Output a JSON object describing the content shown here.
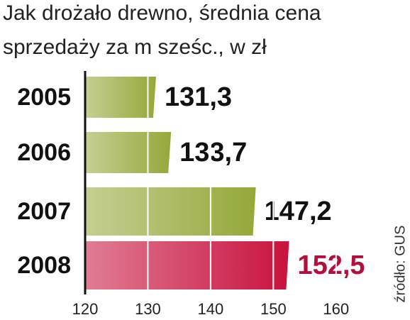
{
  "chart_data": {
    "type": "bar",
    "orientation": "horizontal",
    "title": [
      "Jak drożało drewno, średnia cena",
      "sprzedaży za m sześc., w zł"
    ],
    "source": "źródło: GUS",
    "categories": [
      "2005",
      "2006",
      "2007",
      "2008"
    ],
    "values": [
      131.3,
      133.7,
      147.2,
      152.5
    ],
    "value_labels": [
      "131,3",
      "133,7",
      "147,2",
      "152,5"
    ],
    "colors": [
      "#95a83a",
      "#95a83a",
      "#95a83a",
      "#c8123e"
    ],
    "label_colors": [
      "#111111",
      "#111111",
      "#111111",
      "#b0103a"
    ],
    "xlim": [
      120,
      165
    ],
    "xticks": [
      120,
      130,
      140,
      150,
      160
    ],
    "grid": true
  }
}
